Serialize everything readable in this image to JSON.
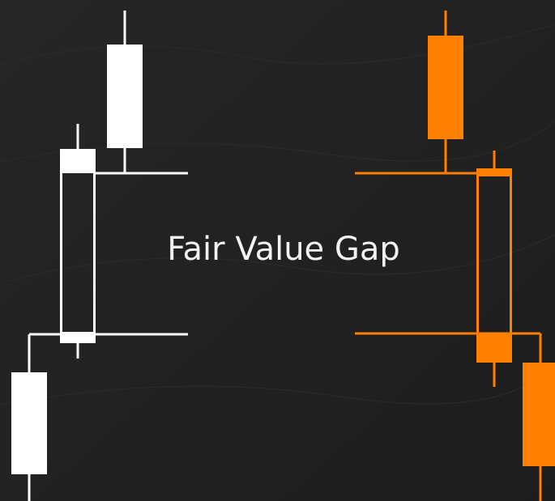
{
  "title": "Fair Value Gap"
}
